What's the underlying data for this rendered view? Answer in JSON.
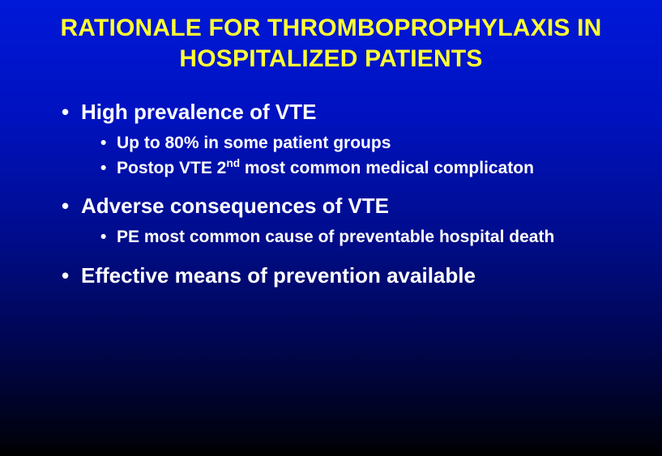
{
  "slide": {
    "background_gradient_top": "#0018d8",
    "background_gradient_bottom": "#000000",
    "title_color": "#ffff33",
    "text_color": "#ffffff",
    "title_line1": "RATIONALE FOR THROMBOPROPHYLAXIS IN",
    "title_line2": "HOSPITALIZED PATIENTS",
    "bullets": {
      "b1": "High prevalence of VTE",
      "b1_sub1": "Up to 80% in some patient groups",
      "b1_sub2_pre": "Postop VTE 2",
      "b1_sub2_sup": "nd",
      "b1_sub2_post": " most common medical complicaton",
      "b2": "Adverse consequences of VTE",
      "b2_sub1": "PE most common cause of preventable hospital death",
      "b3": "Effective means of prevention available"
    }
  }
}
